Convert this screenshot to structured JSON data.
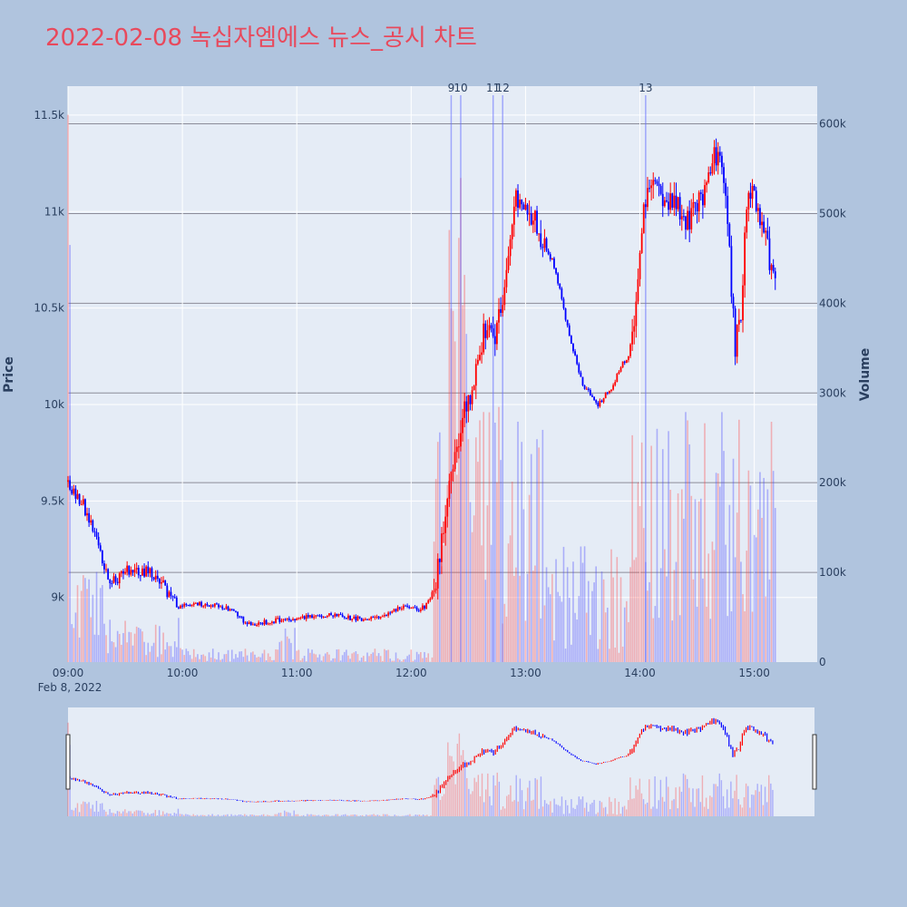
{
  "chart_data": {
    "type": "candlestick",
    "title": "2022-02-08 녹십자엠에스 뉴스_공시 차트",
    "ylabel": "Price",
    "y2label": "Volume",
    "ylim": [
      8665,
      11650
    ],
    "y2lim": [
      0,
      642000
    ],
    "x_range_minutes": [
      540,
      933
    ],
    "date_label": "Feb 8, 2022",
    "x_ticks": [
      {
        "minute": 540,
        "label": "09:00"
      },
      {
        "minute": 600,
        "label": "10:00"
      },
      {
        "minute": 660,
        "label": "11:00"
      },
      {
        "minute": 720,
        "label": "12:00"
      },
      {
        "minute": 780,
        "label": "13:00"
      },
      {
        "minute": 840,
        "label": "14:00"
      },
      {
        "minute": 900,
        "label": "15:00"
      }
    ],
    "y_ticks": [
      {
        "value": 9000,
        "label": "9k"
      },
      {
        "value": 9500,
        "label": "9.5k"
      },
      {
        "value": 10000,
        "label": "10k"
      },
      {
        "value": 10500,
        "label": "10.5k"
      },
      {
        "value": 11000,
        "label": "11k"
      },
      {
        "value": 11500,
        "label": "11.5k"
      }
    ],
    "y2_ticks": [
      {
        "value": 0,
        "label": "0"
      },
      {
        "value": 100000,
        "label": "100k"
      },
      {
        "value": 200000,
        "label": "200k"
      },
      {
        "value": 300000,
        "label": "300k"
      },
      {
        "value": 400000,
        "label": "400k"
      },
      {
        "value": 500000,
        "label": "500k"
      },
      {
        "value": 600000,
        "label": "600k"
      }
    ],
    "annotations": [
      {
        "minute": 741,
        "label": "9"
      },
      {
        "minute": 746,
        "label": "10"
      },
      {
        "minute": 763,
        "label": "11"
      },
      {
        "minute": 768,
        "label": "12"
      },
      {
        "minute": 843,
        "label": "13"
      }
    ],
    "price_keypoints": [
      [
        540,
        9600
      ],
      [
        542,
        9560
      ],
      [
        545,
        9520
      ],
      [
        548,
        9480
      ],
      [
        550,
        9420
      ],
      [
        552,
        9380
      ],
      [
        555,
        9320
      ],
      [
        558,
        9200
      ],
      [
        560,
        9120
      ],
      [
        562,
        9080
      ],
      [
        566,
        9100
      ],
      [
        570,
        9140
      ],
      [
        574,
        9130
      ],
      [
        578,
        9120
      ],
      [
        582,
        9150
      ],
      [
        586,
        9100
      ],
      [
        590,
        9080
      ],
      [
        594,
        8980
      ],
      [
        600,
        8960
      ],
      [
        606,
        8970
      ],
      [
        612,
        8960
      ],
      [
        618,
        8960
      ],
      [
        624,
        8940
      ],
      [
        628,
        8920
      ],
      [
        632,
        8880
      ],
      [
        636,
        8860
      ],
      [
        642,
        8870
      ],
      [
        648,
        8880
      ],
      [
        654,
        8890
      ],
      [
        660,
        8890
      ],
      [
        666,
        8900
      ],
      [
        672,
        8910
      ],
      [
        678,
        8910
      ],
      [
        684,
        8900
      ],
      [
        690,
        8890
      ],
      [
        696,
        8890
      ],
      [
        702,
        8900
      ],
      [
        708,
        8920
      ],
      [
        714,
        8950
      ],
      [
        720,
        8950
      ],
      [
        724,
        8940
      ],
      [
        728,
        8960
      ],
      [
        732,
        9050
      ],
      [
        735,
        9200
      ],
      [
        738,
        9400
      ],
      [
        740,
        9600
      ],
      [
        742,
        9700
      ],
      [
        745,
        9800
      ],
      [
        748,
        9950
      ],
      [
        752,
        10100
      ],
      [
        756,
        10300
      ],
      [
        760,
        10400
      ],
      [
        764,
        10350
      ],
      [
        768,
        10500
      ],
      [
        772,
        10800
      ],
      [
        775,
        11100
      ],
      [
        778,
        11050
      ],
      [
        782,
        11000
      ],
      [
        786,
        10950
      ],
      [
        790,
        10800
      ],
      [
        794,
        10750
      ],
      [
        798,
        10600
      ],
      [
        802,
        10400
      ],
      [
        806,
        10250
      ],
      [
        810,
        10100
      ],
      [
        814,
        10050
      ],
      [
        818,
        10000
      ],
      [
        822,
        10050
      ],
      [
        826,
        10100
      ],
      [
        830,
        10200
      ],
      [
        834,
        10250
      ],
      [
        838,
        10500
      ],
      [
        842,
        11000
      ],
      [
        846,
        11200
      ],
      [
        850,
        11100
      ],
      [
        854,
        11050
      ],
      [
        858,
        11100
      ],
      [
        862,
        11000
      ],
      [
        866,
        10950
      ],
      [
        870,
        11050
      ],
      [
        874,
        11100
      ],
      [
        878,
        11300
      ],
      [
        882,
        11250
      ],
      [
        886,
        11000
      ],
      [
        888,
        10600
      ],
      [
        890,
        10300
      ],
      [
        893,
        10500
      ],
      [
        896,
        11050
      ],
      [
        899,
        11150
      ],
      [
        902,
        11000
      ],
      [
        905,
        10900
      ],
      [
        908,
        10750
      ],
      [
        911,
        10650
      ]
    ]
  }
}
